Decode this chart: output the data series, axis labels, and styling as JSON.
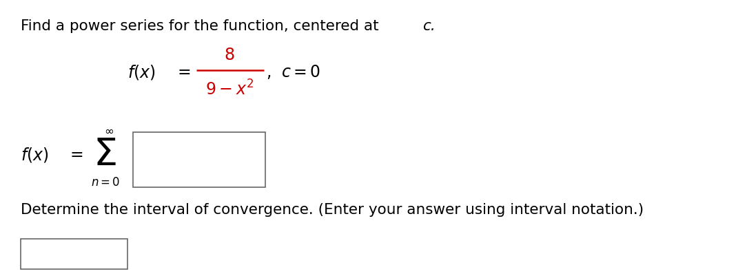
{
  "bg_color": "#ffffff",
  "text_color": "#000000",
  "red_color": "#cc0000",
  "fig_width": 10.84,
  "fig_height": 4.02,
  "dpi": 100,
  "title_main": "Find a power series for the function, centered at ",
  "title_c": "c.",
  "determine_text": "Determine the interval of convergence. (Enter your answer using interval notation.)"
}
